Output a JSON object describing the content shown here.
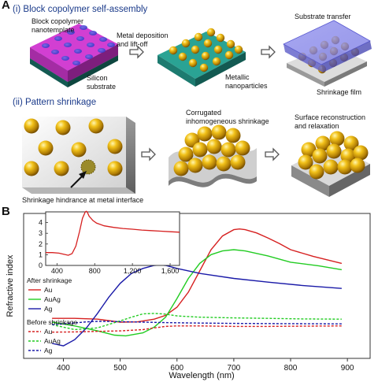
{
  "panel_a": {
    "letter": "A",
    "step1_title": "(i) Block copolymer self-assembly",
    "step2_title": "(ii) Pattern shrinkage",
    "labels": {
      "template": "Block copolymer\nnanotemplate",
      "silicon": "Silicon\nsubstrate",
      "metal_dep": "Metal deposition\nand lift-off",
      "metallic_np": "Metallic\nnanoparticles",
      "substrate_transfer": "Substrate transfer",
      "shrink_film": "Shrinkage film",
      "corrugated": "Corrugated\ninhomogeneous shrinkage",
      "surface_recon": "Surface reconstruction\nand relaxation",
      "hindrance": "Shrinkage hindrance at metal interface"
    }
  },
  "panel_b": {
    "letter": "B",
    "legend": {
      "after_header": "After shrinkage",
      "before_header": "Before shrinkage"
    }
  },
  "chart_data": [
    {
      "type": "line",
      "xlabel": "Wavelength (nm)",
      "ylabel": "Refractive index",
      "xlim": [
        330,
        940
      ],
      "xticks": [
        400,
        500,
        600,
        700,
        800,
        900
      ],
      "series": [
        {
          "name": "Au",
          "group": "After shrinkage",
          "color": "#d62020",
          "dash": false,
          "x": [
            380,
            420,
            460,
            500,
            530,
            560,
            580,
            600,
            620,
            640,
            660,
            680,
            700,
            710,
            720,
            740,
            760,
            780,
            800,
            840,
            890
          ],
          "y": [
            1.0,
            1.0,
            0.97,
            0.85,
            0.86,
            0.97,
            1.12,
            1.45,
            2.05,
            2.9,
            3.75,
            4.3,
            4.55,
            4.58,
            4.55,
            4.42,
            4.22,
            4.0,
            3.75,
            3.48,
            3.2
          ]
        },
        {
          "name": "AuAg",
          "group": "After shrinkage",
          "color": "#22cc22",
          "dash": false,
          "x": [
            380,
            420,
            460,
            490,
            510,
            540,
            560,
            580,
            600,
            620,
            640,
            660,
            680,
            700,
            720,
            760,
            800,
            850,
            890
          ],
          "y": [
            0.85,
            0.7,
            0.5,
            0.33,
            0.3,
            0.42,
            0.65,
            1.05,
            1.8,
            2.6,
            3.2,
            3.55,
            3.7,
            3.75,
            3.7,
            3.5,
            3.25,
            3.1,
            2.95
          ]
        },
        {
          "name": "Ag",
          "group": "After shrinkage",
          "color": "#1a1aa8",
          "dash": false,
          "x": [
            380,
            400,
            420,
            440,
            460,
            480,
            500,
            520,
            540,
            560,
            570,
            580,
            600,
            640,
            700,
            760,
            820,
            890
          ],
          "y": [
            0.0,
            -0.1,
            0.15,
            0.6,
            1.2,
            1.85,
            2.4,
            2.8,
            3.0,
            3.12,
            3.14,
            3.12,
            3.0,
            2.8,
            2.6,
            2.45,
            2.32,
            2.2
          ]
        },
        {
          "name": "Au",
          "group": "Before shrinkage",
          "color": "#d62020",
          "dash": true,
          "x": [
            380,
            420,
            460,
            500,
            540,
            560,
            580,
            600,
            640,
            700,
            760,
            820,
            890
          ],
          "y": [
            0.45,
            0.46,
            0.48,
            0.5,
            0.55,
            0.62,
            0.68,
            0.7,
            0.7,
            0.68,
            0.68,
            0.69,
            0.7
          ]
        },
        {
          "name": "AuAg",
          "group": "Before shrinkage",
          "color": "#22cc22",
          "dash": true,
          "x": [
            380,
            420,
            460,
            500,
            520,
            540,
            560,
            580,
            600,
            640,
            700,
            760,
            820,
            890
          ],
          "y": [
            0.75,
            0.55,
            0.62,
            0.9,
            1.05,
            1.18,
            1.2,
            1.17,
            1.1,
            1.05,
            1.02,
            1.0,
            0.98,
            0.97
          ]
        },
        {
          "name": "Ag",
          "group": "Before shrinkage",
          "color": "#1a1aa8",
          "dash": true,
          "x": [
            380,
            400,
            420,
            440,
            460,
            480,
            500,
            540,
            580,
            620,
            700,
            780,
            890
          ],
          "y": [
            0.75,
            0.78,
            0.82,
            0.86,
            0.88,
            0.88,
            0.87,
            0.85,
            0.83,
            0.82,
            0.8,
            0.79,
            0.78
          ]
        }
      ]
    },
    {
      "type": "line",
      "xlim": [
        280,
        1700
      ],
      "ylim": [
        0,
        5
      ],
      "xticks": [
        400,
        800,
        1200,
        1600
      ],
      "xtick_labels": [
        "400",
        "800",
        "1,200",
        "1,600"
      ],
      "yticks": [
        0,
        1,
        2,
        3,
        4
      ],
      "series": [
        {
          "color": "#d62020",
          "x": [
            280,
            350,
            420,
            470,
            520,
            560,
            600,
            640,
            670,
            700,
            710,
            720,
            740,
            780,
            820,
            900,
            1000,
            1100,
            1200,
            1300,
            1400,
            1500,
            1600,
            1700
          ],
          "y": [
            1.2,
            1.2,
            1.15,
            1.05,
            0.95,
            1.1,
            1.8,
            3.2,
            4.4,
            5.0,
            5.05,
            5.0,
            4.6,
            4.2,
            3.95,
            3.7,
            3.55,
            3.45,
            3.38,
            3.3,
            3.25,
            3.2,
            3.15,
            3.1
          ]
        }
      ]
    }
  ]
}
